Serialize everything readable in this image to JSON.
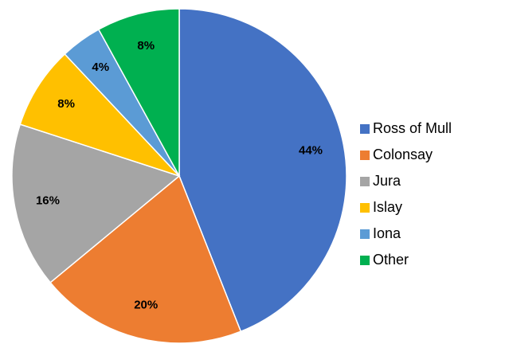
{
  "chart_data": {
    "type": "pie",
    "categories": [
      "Ross of Mull",
      "Colonsay",
      "Jura",
      "Islay",
      "Iona",
      "Other"
    ],
    "values": [
      44,
      20,
      16,
      8,
      4,
      8
    ],
    "value_labels": [
      "44%",
      "20%",
      "16%",
      "8%",
      "4%",
      "8%"
    ],
    "colors": [
      "#4472c4",
      "#ed7d31",
      "#a5a5a5",
      "#ffc000",
      "#5b9bd5",
      "#00b050"
    ],
    "legend": "right"
  }
}
